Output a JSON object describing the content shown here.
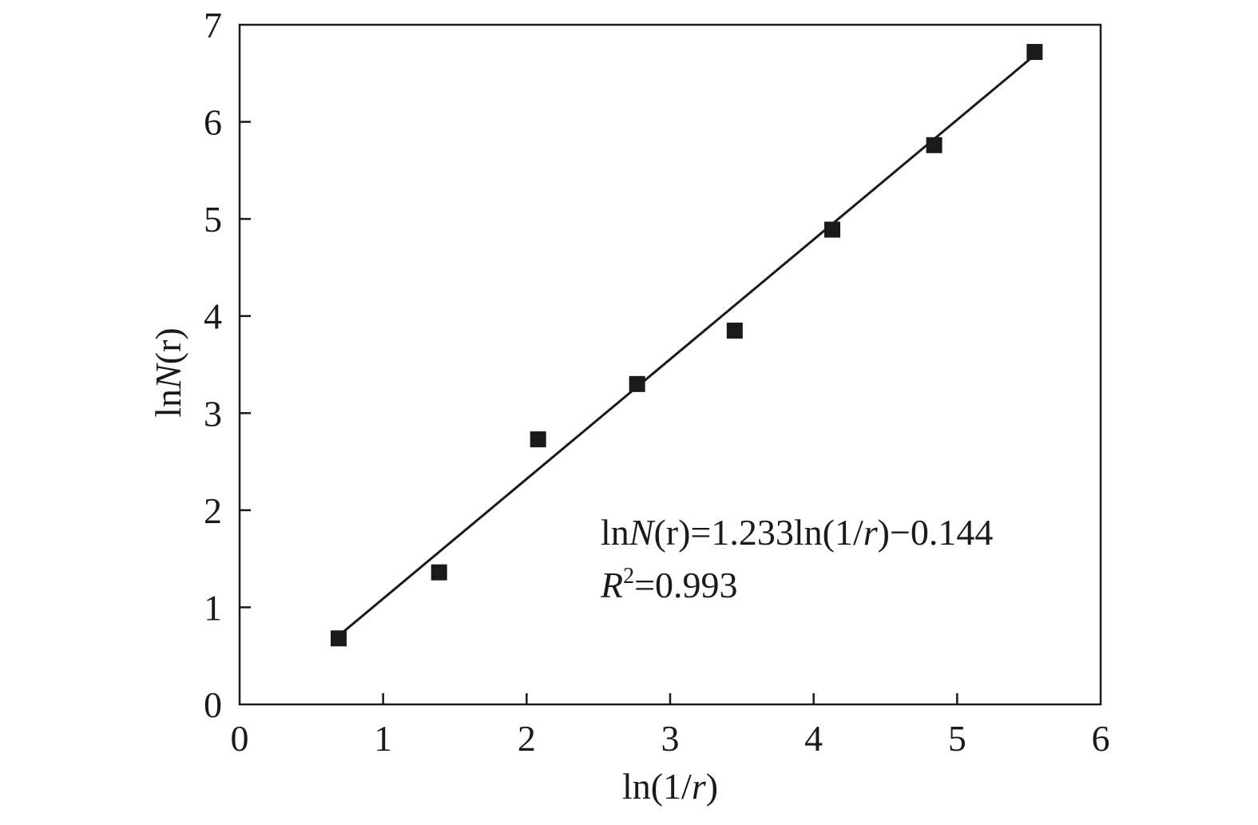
{
  "chart_data": {
    "type": "scatter",
    "x_label": {
      "prefix": "ln(1/",
      "italic": "r",
      "suffix": ")"
    },
    "y_label": {
      "prefix": "ln",
      "italic": "N",
      "suffix": "(r)"
    },
    "xlim": [
      0,
      6
    ],
    "ylim": [
      0,
      7
    ],
    "x_ticks": [
      "0",
      "1",
      "2",
      "3",
      "4",
      "5",
      "6"
    ],
    "y_ticks": [
      "0",
      "1",
      "2",
      "3",
      "4",
      "5",
      "6",
      "7"
    ],
    "grid": false,
    "marker": "square",
    "colors": {
      "marker": "#1a1a1a",
      "line": "#1a1a1a",
      "axis": "#1a1a1a"
    },
    "points": [
      {
        "x": 0.69,
        "y": 0.68
      },
      {
        "x": 1.39,
        "y": 1.36
      },
      {
        "x": 2.08,
        "y": 2.73
      },
      {
        "x": 2.77,
        "y": 3.3
      },
      {
        "x": 3.45,
        "y": 3.85
      },
      {
        "x": 4.13,
        "y": 4.89
      },
      {
        "x": 4.84,
        "y": 5.76
      },
      {
        "x": 5.54,
        "y": 6.72
      }
    ],
    "fit": {
      "slope": 1.233,
      "intercept": -0.144,
      "x_range": [
        0.69,
        5.54
      ],
      "equation": {
        "a": "ln",
        "b": "N",
        "c": "(r)=1.233ln(1/",
        "d": "r",
        "e": ")−0.144"
      },
      "r2": {
        "symbol": "R",
        "sup": "2",
        "value": "=0.993"
      }
    }
  }
}
